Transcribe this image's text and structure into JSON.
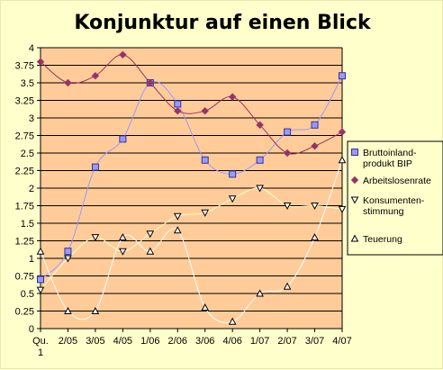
{
  "chart_data": {
    "type": "line",
    "title": "Konjunktur auf einen Blick",
    "categories": [
      "Qu.\n1",
      "2/05",
      "3/05",
      "4/05",
      "1/06",
      "2/06",
      "3/06",
      "4/06",
      "1/07",
      "2/07",
      "3/07",
      "4/07"
    ],
    "ylim": [
      0,
      4
    ],
    "yticks": [
      "0",
      "0.25",
      "0.5",
      "0.75",
      "1",
      "1.25",
      "1.5",
      "1.75",
      "2",
      "2.25",
      "2.5",
      "2.75",
      "3",
      "3.25",
      "3.5",
      "3.75",
      "4"
    ],
    "grid": true,
    "legend_position": "right",
    "plot_background": "#ffcc99",
    "page_background": "#ffffcc",
    "series": [
      {
        "name": "Bruttoinland-\nprodukt BIP",
        "values": [
          0.7,
          1.1,
          2.3,
          2.7,
          3.5,
          3.2,
          2.4,
          2.2,
          2.4,
          2.8,
          2.9,
          3.6
        ],
        "line_color": "#9999ff",
        "marker": "square",
        "marker_fill": "#9999ff",
        "marker_stroke": "#333399"
      },
      {
        "name": "Arbeitslosenrate",
        "values": [
          3.8,
          3.5,
          3.6,
          3.9,
          3.5,
          3.1,
          3.1,
          3.3,
          2.9,
          2.5,
          2.6,
          2.8
        ],
        "line_color": "#993366",
        "marker": "diamond",
        "marker_fill": "#993366",
        "marker_stroke": "#993366"
      },
      {
        "name": "Konsumenten-\nstimmung",
        "values": [
          0.55,
          1.0,
          1.3,
          1.1,
          1.35,
          1.6,
          1.65,
          1.85,
          2.0,
          1.75,
          1.75,
          1.7
        ],
        "line_color": "#ffffcc",
        "marker": "triangle-down",
        "marker_fill": "#ffffff",
        "marker_stroke": "#000000"
      },
      {
        "name": "Teuerung",
        "values": [
          1.1,
          0.25,
          0.25,
          1.3,
          1.1,
          1.4,
          0.3,
          0.1,
          0.5,
          0.6,
          1.3,
          2.4
        ],
        "line_color": "#ffffff",
        "marker": "triangle-up",
        "marker_fill": "#ffffff",
        "marker_stroke": "#000000"
      }
    ]
  }
}
